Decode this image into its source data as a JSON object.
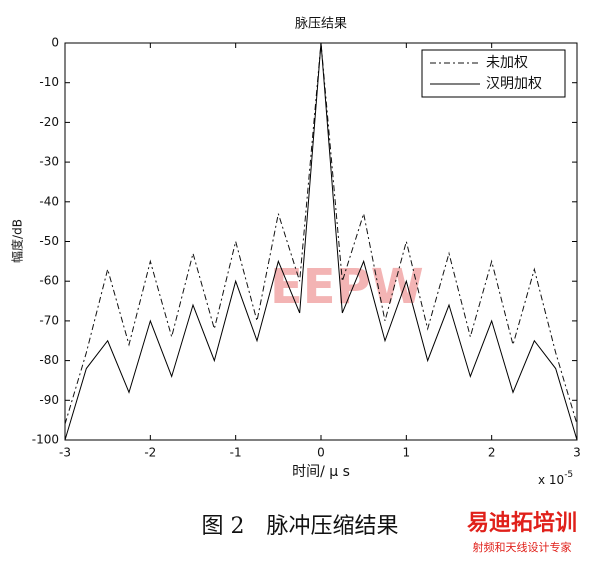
{
  "chart_data": {
    "type": "line",
    "title": "脉压结果",
    "x_label": "时间/ μ s",
    "y_label": "幅度/dB",
    "x_exponent": {
      "base": "x 10",
      "power": "-5"
    },
    "x": [
      -3,
      -2.75,
      -2.5,
      -2.25,
      -2,
      -1.75,
      -1.5,
      -1.25,
      -1,
      -0.75,
      -0.5,
      -0.25,
      0,
      0.25,
      0.5,
      0.75,
      1,
      1.25,
      1.5,
      1.75,
      2,
      2.25,
      2.5,
      2.75,
      3
    ],
    "series": [
      {
        "name": "未加权",
        "color": "#111111",
        "dash": "6 3 2 3",
        "values": [
          -96,
          -78,
          -57,
          -76,
          -55,
          -74,
          -53,
          -72,
          -50,
          -70,
          -43,
          -60,
          0,
          -60,
          -43,
          -70,
          -50,
          -72,
          -53,
          -74,
          -55,
          -76,
          -57,
          -78,
          -96
        ]
      },
      {
        "name": "汉明加权",
        "color": "#000000",
        "dash": "none",
        "values": [
          -100,
          -82,
          -75,
          -88,
          -70,
          -84,
          -66,
          -80,
          -60,
          -75,
          -55,
          -68,
          0,
          -68,
          -55,
          -75,
          -60,
          -80,
          -66,
          -84,
          -70,
          -88,
          -75,
          -82,
          -100
        ]
      }
    ],
    "xlim": [
      -3,
      3
    ],
    "xticks": [
      -3,
      -2,
      -1,
      0,
      1,
      2,
      3
    ],
    "ylim": [
      -100,
      0
    ],
    "yticks": [
      -100,
      -90,
      -80,
      -70,
      -60,
      -50,
      -40,
      -30,
      -20,
      -10,
      0
    ],
    "grid": false,
    "legend": "upper right"
  },
  "caption": "图 2　脉冲压缩结果",
  "watermarks": [
    "EEPW",
    "易迪拓培训",
    "射频和天线设计专家"
  ]
}
